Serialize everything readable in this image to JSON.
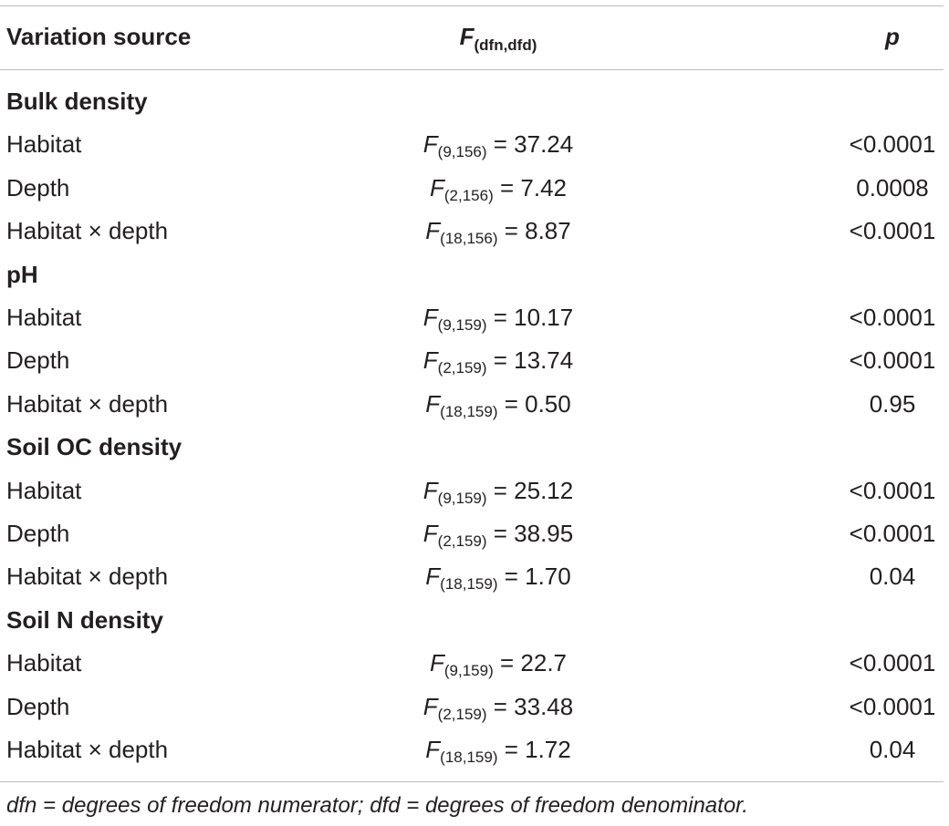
{
  "header": {
    "source": "Variation source",
    "f_symbol": "F",
    "f_sub": "(dfn,dfd)",
    "p": "p"
  },
  "groups": [
    {
      "title": "Bulk density",
      "rows": [
        {
          "source": "Habitat",
          "f_sub": "(9,156)",
          "f_value": " = 37.24",
          "p": "<0.0001"
        },
        {
          "source": "Depth",
          "f_sub": "(2,156)",
          "f_value": " = 7.42",
          "p": "0.0008"
        },
        {
          "source": "Habitat × depth",
          "f_sub": "(18,156)",
          "f_value": " = 8.87",
          "p": "<0.0001"
        }
      ]
    },
    {
      "title": "pH",
      "rows": [
        {
          "source": "Habitat",
          "f_sub": "(9,159)",
          "f_value": " = 10.17",
          "p": "<0.0001"
        },
        {
          "source": "Depth",
          "f_sub": "(2,159)",
          "f_value": " = 13.74",
          "p": "<0.0001"
        },
        {
          "source": "Habitat × depth",
          "f_sub": "(18,159)",
          "f_value": " = 0.50",
          "p": "0.95"
        }
      ]
    },
    {
      "title": "Soil OC density",
      "rows": [
        {
          "source": "Habitat",
          "f_sub": "(9,159)",
          "f_value": " = 25.12",
          "p": "<0.0001"
        },
        {
          "source": "Depth",
          "f_sub": "(2,159)",
          "f_value": " = 38.95",
          "p": "<0.0001"
        },
        {
          "source": "Habitat × depth",
          "f_sub": "(18,159)",
          "f_value": " = 1.70",
          "p": "0.04"
        }
      ]
    },
    {
      "title": "Soil N density",
      "rows": [
        {
          "source": "Habitat",
          "f_sub": "(9,159)",
          "f_value": " = 22.7",
          "p": "<0.0001"
        },
        {
          "source": "Depth",
          "f_sub": "(2,159)",
          "f_value": " = 33.48",
          "p": "<0.0001"
        },
        {
          "source": "Habitat × depth",
          "f_sub": "(18,159)",
          "f_value": " = 1.72",
          "p": "0.04"
        }
      ]
    }
  ],
  "footnote": "dfn = degrees of freedom numerator; dfd = degrees of freedom denominator."
}
